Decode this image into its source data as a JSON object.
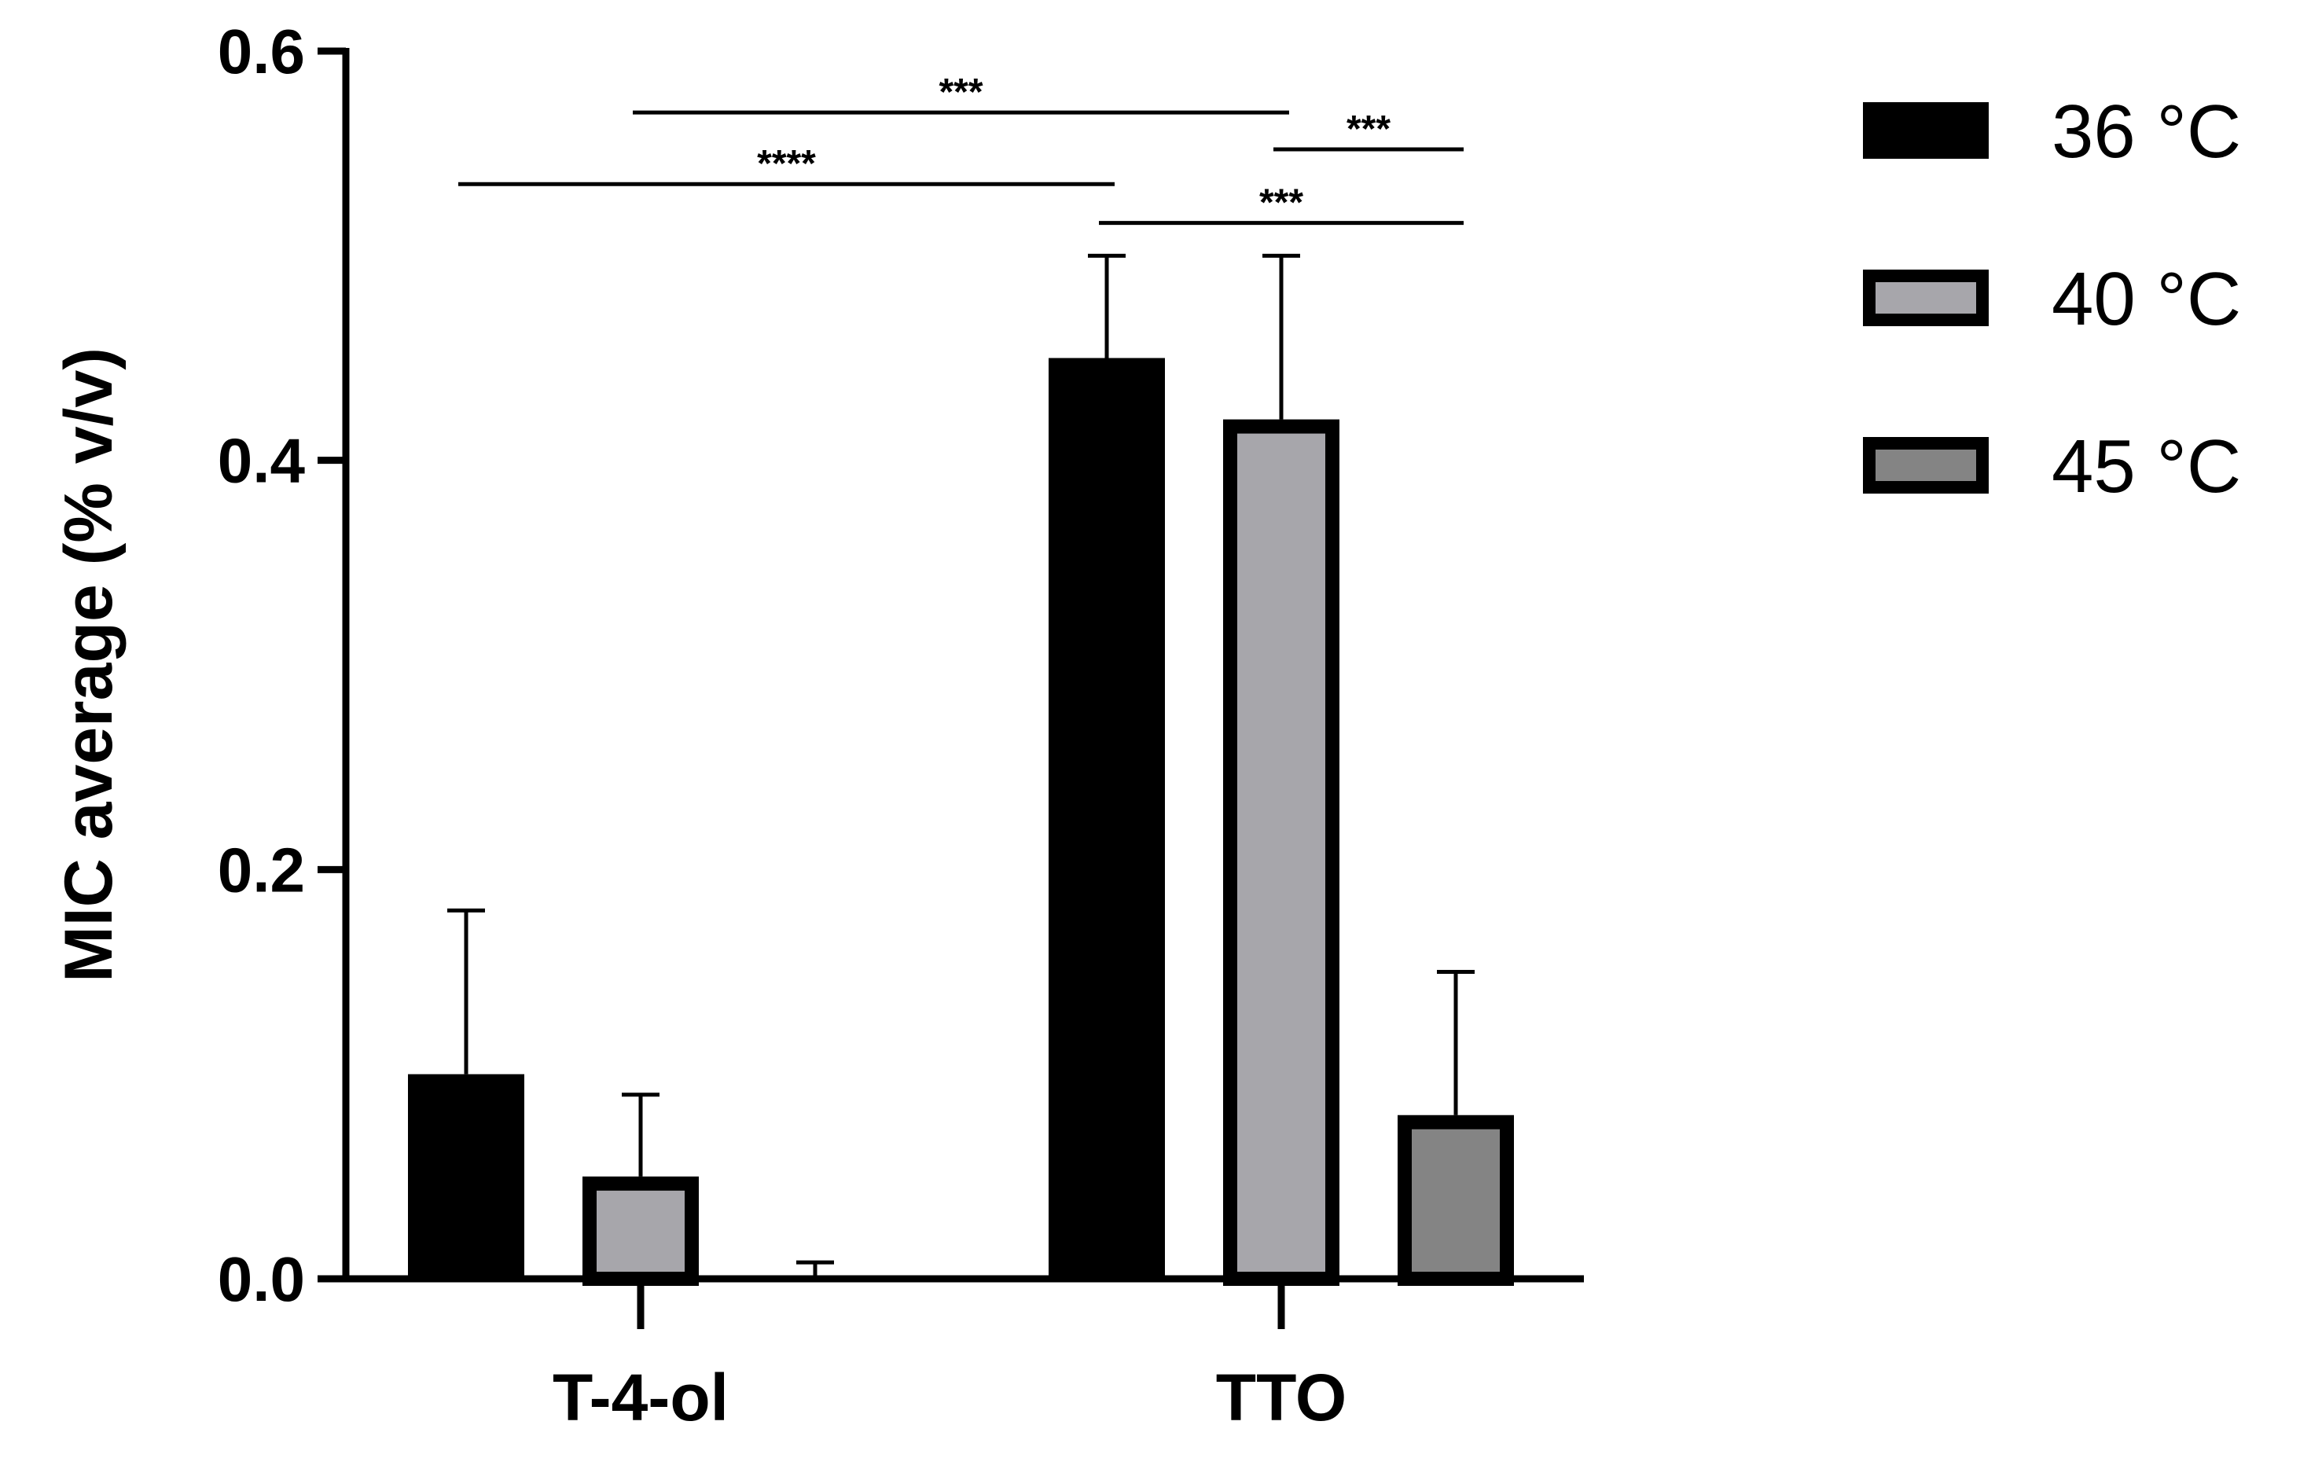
{
  "chart_data": {
    "type": "bar",
    "title": "",
    "xlabel": "",
    "ylabel": "MIC average (% v/v)",
    "ylim": [
      0,
      0.6
    ],
    "yticks": [
      0.0,
      0.2,
      0.4,
      0.6
    ],
    "ytick_labels": [
      "0.0",
      "0.2",
      "0.4",
      "0.6"
    ],
    "categories": [
      "T-4-ol",
      "TTO"
    ],
    "series": [
      {
        "name": "36 °C",
        "color": "#000000",
        "values": [
          0.1,
          0.45
        ],
        "errors": [
          0.08,
          0.05
        ]
      },
      {
        "name": "40 °C",
        "color": "#a7a6ab",
        "values": [
          0.05,
          0.42
        ],
        "errors": [
          0.04,
          0.08
        ]
      },
      {
        "name": "45 °C",
        "color": "#848484",
        "values": [
          0.0,
          0.08
        ],
        "errors": [
          0.008,
          0.07
        ]
      }
    ],
    "legend_position": "top-right",
    "significance": [
      {
        "label": "***",
        "from": {
          "category": "T-4-ol",
          "series": "40 °C"
        },
        "to": {
          "category": "TTO",
          "series": "40 °C"
        },
        "y": 0.57
      },
      {
        "label": "***",
        "from": {
          "category": "TTO",
          "series": "40 °C"
        },
        "to": {
          "category": "TTO",
          "series": "45 °C"
        },
        "y": 0.552
      },
      {
        "label": "****",
        "from": {
          "category": "T-4-ol",
          "series": "36 °C"
        },
        "to": {
          "category": "TTO",
          "series": "36 °C"
        },
        "y": 0.535
      },
      {
        "label": "***",
        "from": {
          "category": "TTO",
          "series": "36 °C"
        },
        "to": {
          "category": "TTO",
          "series": "45 °C"
        },
        "y": 0.516
      }
    ]
  }
}
